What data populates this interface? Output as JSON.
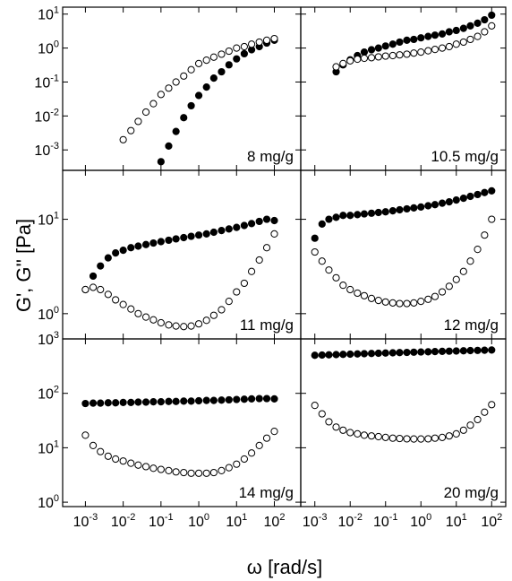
{
  "xlabel": "ω [rad/s]",
  "ylabel": "G', G'' [Pa]",
  "chart_data": [
    {
      "type": "scatter",
      "annotation": "8 mg/g",
      "xlim": [
        0.00025,
        500
      ],
      "ylim": [
        0.00025,
        16
      ],
      "xticks": [
        0.001,
        0.01,
        0.1,
        1,
        10,
        100
      ],
      "yticks": [
        {
          "value": 0.001,
          "label": "10",
          "exponent": "-3"
        },
        {
          "value": 0.01,
          "label": "10",
          "exponent": "-2"
        },
        {
          "value": 0.1,
          "label": "10",
          "exponent": "-1"
        },
        {
          "value": 1,
          "label": "10",
          "exponent": "0"
        },
        {
          "value": 10,
          "label": "10",
          "exponent": "1"
        }
      ],
      "x": [
        0.001,
        0.0016,
        0.0025,
        0.004,
        0.0063,
        0.01,
        0.016,
        0.025,
        0.04,
        0.063,
        0.1,
        0.16,
        0.25,
        0.4,
        0.63,
        1,
        1.6,
        2.5,
        4,
        6.3,
        10,
        16,
        25,
        40,
        63,
        100
      ],
      "series": [
        {
          "filled": true,
          "color": "#000000",
          "values": [
            null,
            null,
            null,
            null,
            null,
            null,
            null,
            null,
            null,
            null,
            0.00045,
            0.0013,
            0.0035,
            0.0089,
            0.02,
            0.04,
            0.071,
            0.13,
            0.2,
            0.32,
            0.48,
            0.68,
            0.89,
            1.1,
            1.4,
            1.7
          ]
        },
        {
          "filled": false,
          "color": "#000000",
          "values": [
            null,
            null,
            null,
            null,
            null,
            0.002,
            0.0037,
            0.0069,
            0.013,
            0.023,
            0.043,
            0.066,
            0.1,
            0.15,
            0.23,
            0.35,
            0.44,
            0.54,
            0.66,
            0.81,
            1.0,
            1.1,
            1.3,
            1.5,
            1.7,
            1.9
          ]
        }
      ]
    },
    {
      "type": "scatter",
      "annotation": "10.5 mg/g",
      "xlim": [
        0.0004,
        250
      ],
      "ylim": [
        0.00025,
        16
      ],
      "xticks": [
        0.001,
        0.01,
        0.1,
        1,
        10,
        100
      ],
      "yticks": [
        0.001,
        0.01,
        0.1,
        1,
        10
      ],
      "x": [
        0.001,
        0.0016,
        0.0025,
        0.004,
        0.0063,
        0.01,
        0.016,
        0.025,
        0.04,
        0.063,
        0.1,
        0.16,
        0.25,
        0.4,
        0.63,
        1,
        1.6,
        2.5,
        4,
        6.3,
        10,
        16,
        25,
        40,
        63,
        100
      ],
      "series": [
        {
          "filled": true,
          "color": "#000000",
          "values": [
            null,
            null,
            null,
            0.2,
            0.32,
            0.45,
            0.6,
            0.76,
            0.89,
            1.0,
            1.15,
            1.3,
            1.5,
            1.7,
            1.8,
            2.0,
            2.2,
            2.4,
            2.6,
            3.0,
            3.3,
            3.8,
            4.5,
            5.4,
            6.8,
            9.3
          ]
        },
        {
          "filled": false,
          "color": "#000000",
          "values": [
            null,
            null,
            null,
            0.28,
            0.35,
            0.42,
            0.47,
            0.5,
            0.52,
            0.55,
            0.58,
            0.6,
            0.63,
            0.66,
            0.71,
            0.76,
            0.83,
            0.91,
            1.0,
            1.1,
            1.3,
            1.5,
            1.8,
            2.2,
            3.0,
            4.5
          ]
        }
      ]
    },
    {
      "type": "scatter",
      "annotation": "11 mg/g",
      "xlim": [
        0.00025,
        500
      ],
      "ylim": [
        0.54,
        33
      ],
      "xticks": [
        0.001,
        0.01,
        0.1,
        1,
        10,
        100
      ],
      "yticks": [
        {
          "value": 1,
          "label": "10",
          "exponent": "0"
        },
        {
          "value": 10,
          "label": "10",
          "exponent": "1"
        }
      ],
      "x": [
        0.001,
        0.0016,
        0.0025,
        0.004,
        0.0063,
        0.01,
        0.016,
        0.025,
        0.04,
        0.063,
        0.1,
        0.16,
        0.25,
        0.4,
        0.63,
        1,
        1.6,
        2.5,
        4,
        6.3,
        10,
        16,
        25,
        40,
        63,
        100
      ],
      "series": [
        {
          "filled": true,
          "color": "#000000",
          "values": [
            1.8,
            2.5,
            3.2,
            3.9,
            4.4,
            4.7,
            5.0,
            5.2,
            5.4,
            5.6,
            5.8,
            6.0,
            6.2,
            6.4,
            6.6,
            6.8,
            7.0,
            7.3,
            7.6,
            7.9,
            8.2,
            8.6,
            9.0,
            9.5,
            10,
            9.7
          ]
        },
        {
          "filled": false,
          "color": "#000000",
          "values": [
            1.8,
            1.9,
            1.8,
            1.6,
            1.4,
            1.25,
            1.12,
            1.0,
            0.92,
            0.86,
            0.8,
            0.76,
            0.74,
            0.73,
            0.74,
            0.78,
            0.85,
            0.96,
            1.1,
            1.35,
            1.7,
            2.1,
            2.8,
            3.7,
            5.0,
            7.0
          ]
        }
      ]
    },
    {
      "type": "scatter",
      "annotation": "12 mg/g",
      "xlim": [
        0.0004,
        250
      ],
      "ylim": [
        0.54,
        33
      ],
      "xticks": [
        0.001,
        0.01,
        0.1,
        1,
        10,
        100
      ],
      "yticks": [
        1,
        10
      ],
      "x": [
        0.001,
        0.0016,
        0.0025,
        0.004,
        0.0063,
        0.01,
        0.016,
        0.025,
        0.04,
        0.063,
        0.1,
        0.16,
        0.25,
        0.4,
        0.63,
        1,
        1.6,
        2.5,
        4,
        6.3,
        10,
        16,
        25,
        40,
        63,
        100
      ],
      "series": [
        {
          "filled": true,
          "color": "#000000",
          "values": [
            6.3,
            8.9,
            10,
            10.5,
            11,
            11,
            11.2,
            11.4,
            11.6,
            11.8,
            12,
            12.3,
            12.6,
            12.9,
            13.2,
            13.5,
            13.9,
            14.3,
            14.8,
            15.3,
            16,
            16.7,
            17.5,
            18.3,
            19.2,
            20
          ]
        },
        {
          "filled": false,
          "color": "#000000",
          "values": [
            4.5,
            3.6,
            2.9,
            2.4,
            2.0,
            1.8,
            1.65,
            1.55,
            1.45,
            1.38,
            1.33,
            1.3,
            1.28,
            1.28,
            1.3,
            1.35,
            1.42,
            1.52,
            1.7,
            1.95,
            2.3,
            2.8,
            3.6,
            4.8,
            6.8,
            10
          ]
        }
      ]
    },
    {
      "type": "scatter",
      "annotation": "14 mg/g",
      "xlim": [
        0.00025,
        500
      ],
      "ylim": [
        0.83,
        1000
      ],
      "xticks": [
        {
          "value": 0.001,
          "label": "10",
          "exponent": "-3"
        },
        {
          "value": 0.01,
          "label": "10",
          "exponent": "-2"
        },
        {
          "value": 0.1,
          "label": "10",
          "exponent": "-1"
        },
        {
          "value": 1,
          "label": "10",
          "exponent": "0"
        },
        {
          "value": 10,
          "label": "10",
          "exponent": "1"
        },
        {
          "value": 100,
          "label": "10",
          "exponent": "2"
        }
      ],
      "yticks": [
        {
          "value": 1,
          "label": "10",
          "exponent": "0"
        },
        {
          "value": 10,
          "label": "10",
          "exponent": "1"
        },
        {
          "value": 100,
          "label": "10",
          "exponent": "2"
        },
        {
          "value": 1000,
          "label": "10",
          "exponent": "3"
        }
      ],
      "x": [
        0.001,
        0.0016,
        0.0025,
        0.004,
        0.0063,
        0.01,
        0.016,
        0.025,
        0.04,
        0.063,
        0.1,
        0.16,
        0.25,
        0.4,
        0.63,
        1,
        1.6,
        2.5,
        4,
        6.3,
        10,
        16,
        25,
        40,
        63,
        100
      ],
      "series": [
        {
          "filled": true,
          "color": "#000000",
          "values": [
            65,
            66,
            66,
            67,
            67,
            68,
            68,
            69,
            69,
            70,
            70,
            71,
            71,
            72,
            72,
            73,
            74,
            74,
            75,
            76,
            77,
            78,
            79,
            80,
            80,
            79
          ]
        },
        {
          "filled": false,
          "color": "#000000",
          "values": [
            17,
            11,
            8.5,
            7.0,
            6.2,
            5.7,
            5.2,
            4.8,
            4.5,
            4.2,
            4.0,
            3.8,
            3.6,
            3.5,
            3.4,
            3.4,
            3.4,
            3.5,
            3.8,
            4.3,
            5.0,
            6.2,
            8.0,
            11,
            15,
            20
          ]
        }
      ]
    },
    {
      "type": "scatter",
      "annotation": "20 mg/g",
      "xlim": [
        0.0004,
        250
      ],
      "ylim": [
        0.83,
        1000
      ],
      "xticks": [
        {
          "value": 0.001,
          "label": "10",
          "exponent": "-3"
        },
        {
          "value": 0.01,
          "label": "10",
          "exponent": "-2"
        },
        {
          "value": 0.1,
          "label": "10",
          "exponent": "-1"
        },
        {
          "value": 1,
          "label": "10",
          "exponent": "0"
        },
        {
          "value": 10,
          "label": "10",
          "exponent": "1"
        },
        {
          "value": 100,
          "label": "10",
          "exponent": "2"
        }
      ],
      "yticks": [
        1,
        10,
        100,
        1000
      ],
      "x": [
        0.001,
        0.0016,
        0.0025,
        0.004,
        0.0063,
        0.01,
        0.016,
        0.025,
        0.04,
        0.063,
        0.1,
        0.16,
        0.25,
        0.4,
        0.63,
        1,
        1.6,
        2.5,
        4,
        6.3,
        10,
        16,
        25,
        40,
        63,
        100
      ],
      "series": [
        {
          "filled": true,
          "color": "#000000",
          "values": [
            500,
            505,
            510,
            515,
            520,
            525,
            530,
            535,
            540,
            545,
            550,
            555,
            560,
            565,
            570,
            575,
            580,
            585,
            590,
            595,
            600,
            605,
            610,
            615,
            620,
            625
          ]
        },
        {
          "filled": false,
          "color": "#000000",
          "values": [
            60,
            42,
            30,
            24,
            21,
            19,
            18,
            17,
            16.5,
            16,
            15.5,
            15,
            14.8,
            14.6,
            14.5,
            14.5,
            14.6,
            15,
            15.5,
            16.5,
            18,
            21,
            26,
            33,
            45,
            62
          ]
        }
      ]
    }
  ]
}
